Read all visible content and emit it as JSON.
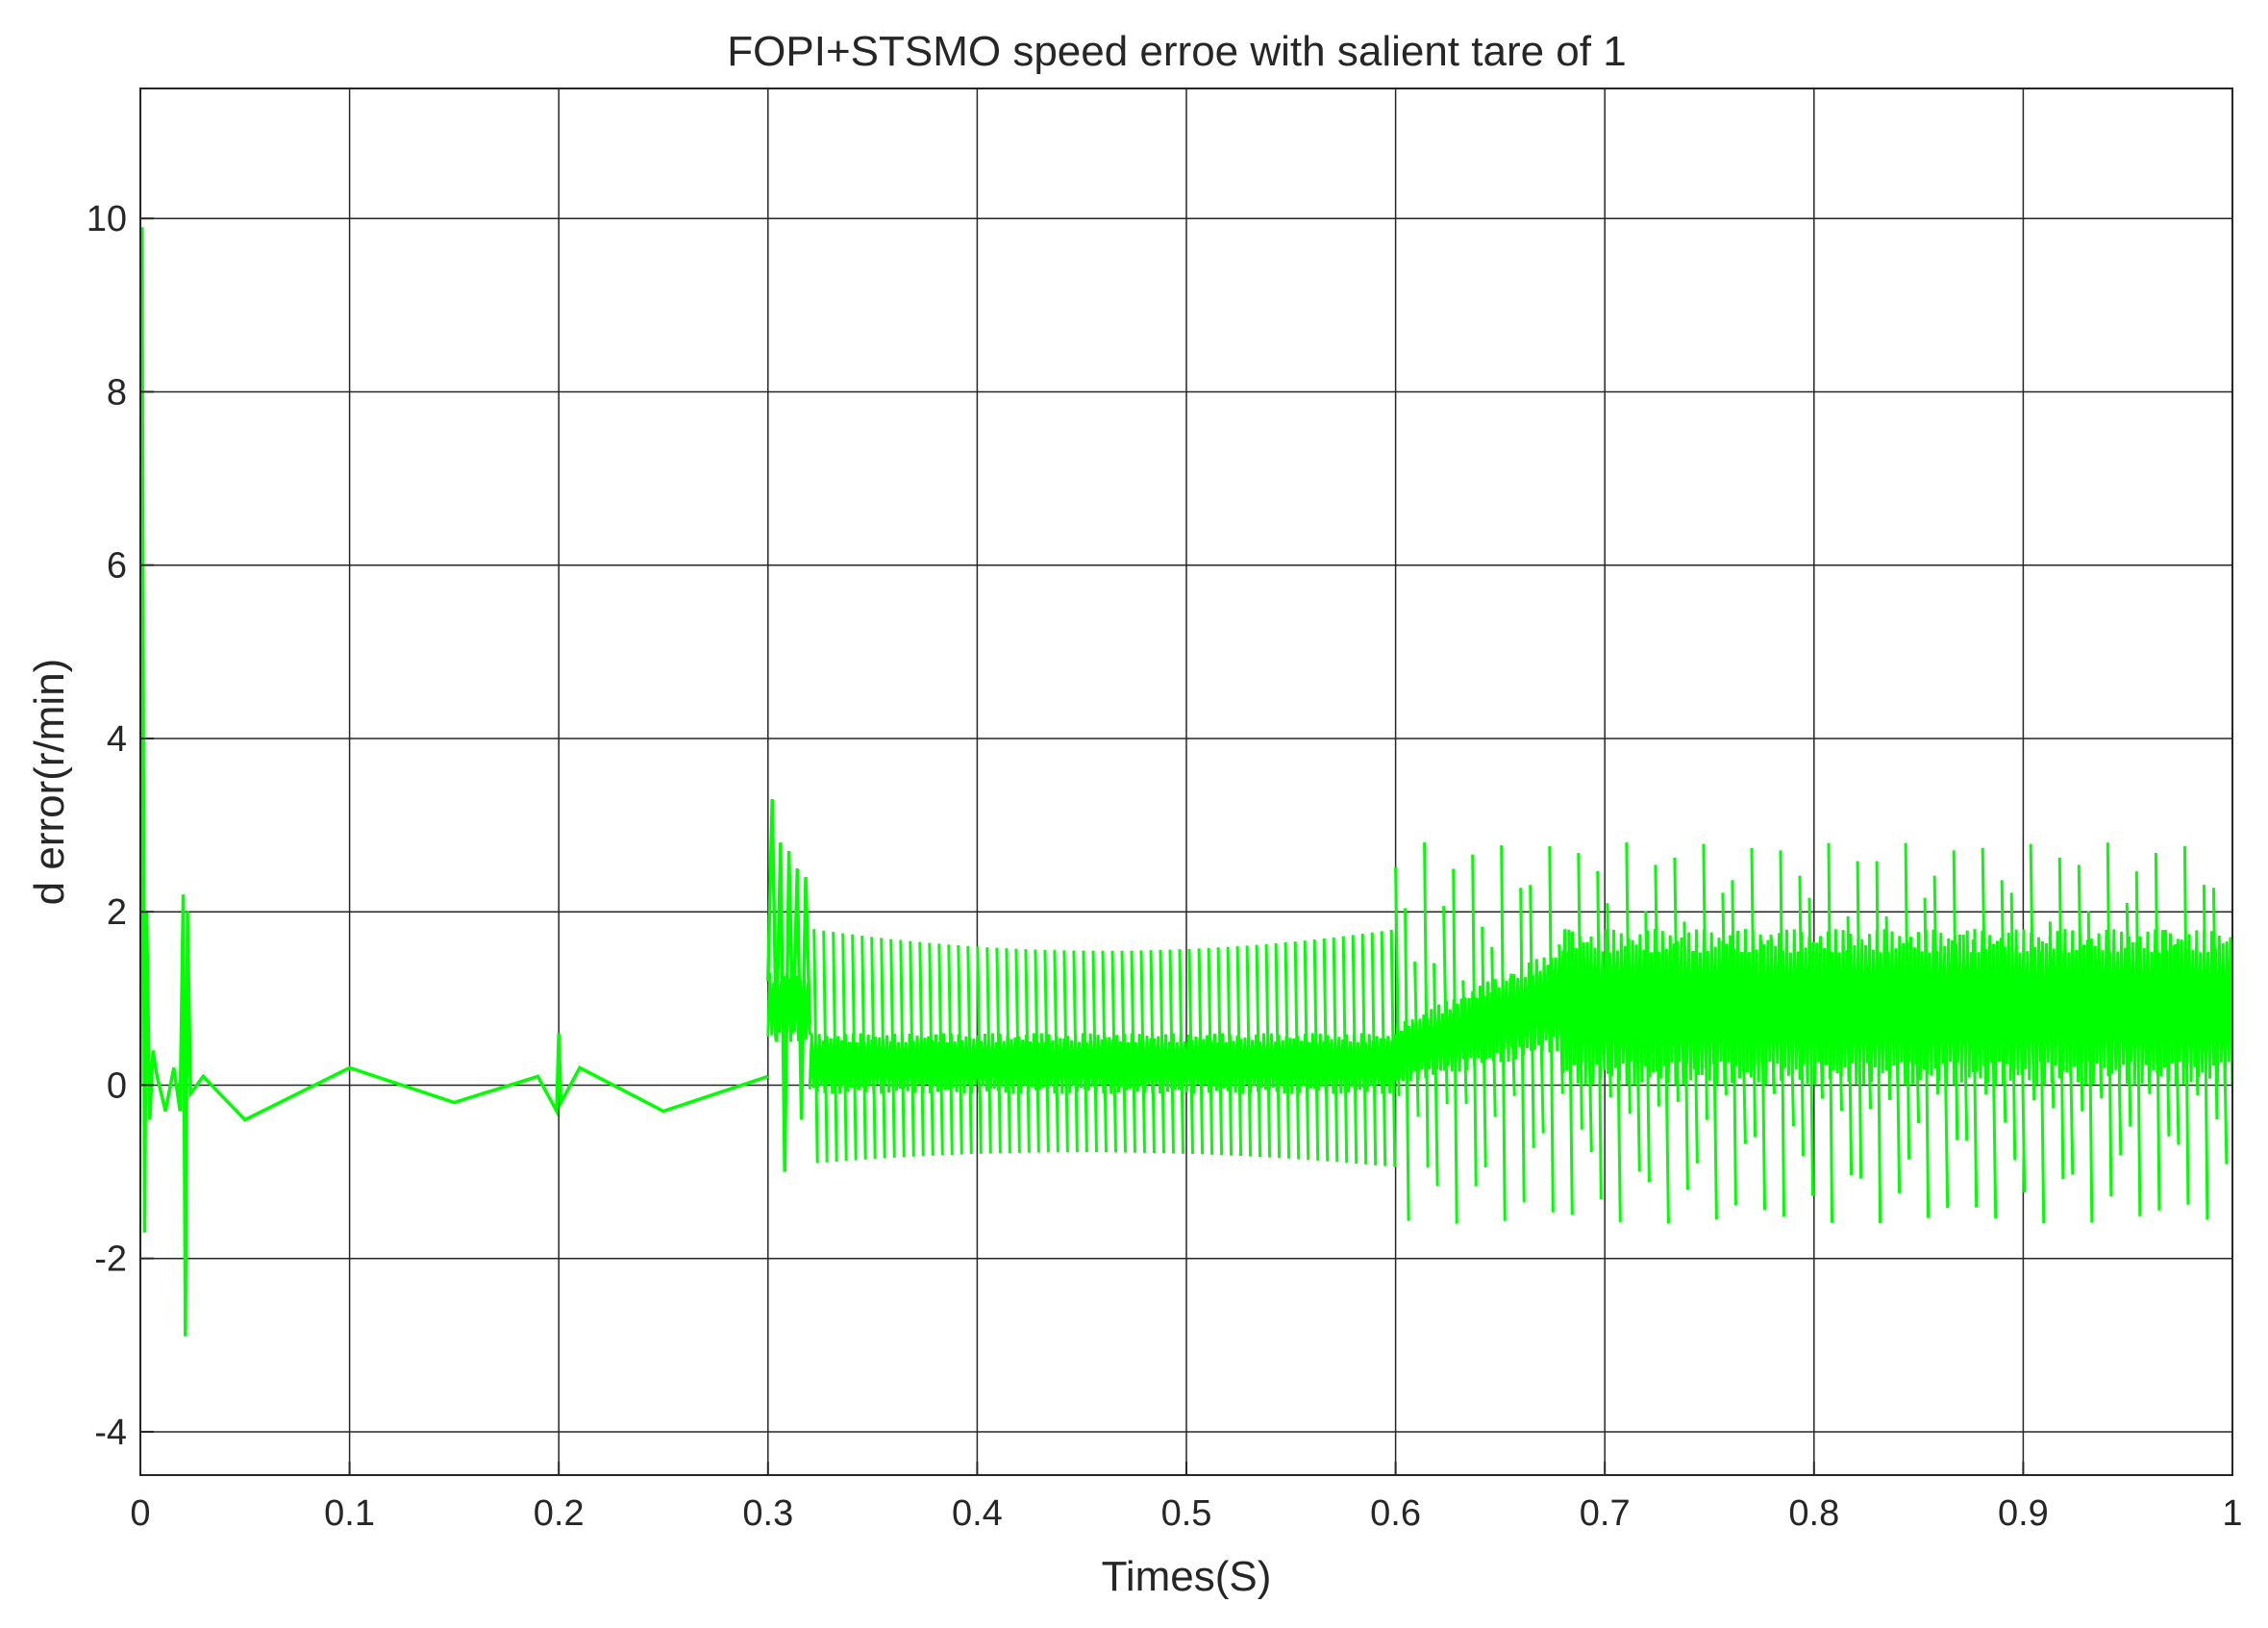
{
  "chart_data": {
    "type": "line",
    "title": "FOPI+STSMO speed erroe with salient tare of 1",
    "xlabel": "Times(S)",
    "ylabel": "d error(r/min)",
    "xlim": [
      0,
      1
    ],
    "ylim": [
      -4.5,
      11.5
    ],
    "xticks": [
      0,
      0.1,
      0.2,
      0.3,
      0.4,
      0.5,
      0.6,
      0.7,
      0.8,
      0.9,
      1
    ],
    "xtick_labels": [
      "0",
      "0.1",
      "0.2",
      "0.3",
      "0.4",
      "0.5",
      "0.6",
      "0.7",
      "0.8",
      "0.9",
      "1"
    ],
    "yticks": [
      -4,
      -2,
      0,
      2,
      4,
      6,
      8,
      10
    ],
    "ytick_labels": [
      "-4",
      "-2",
      "0",
      "2",
      "4",
      "6",
      "8",
      "10"
    ],
    "grid": true,
    "legend": "none",
    "series_color": "#00ff00",
    "series": [
      {
        "segments": [
          {
            "t": [
              0.0,
              0.0008,
              0.002,
              0.003,
              0.0045,
              0.006,
              0.008,
              0.012,
              0.016,
              0.019,
              0.0205,
              0.0215,
              0.0225,
              0.024,
              0.03,
              0.05,
              0.1,
              0.15,
              0.19,
              0.199,
              0.2,
              0.201,
              0.21,
              0.25,
              0.3
            ],
            "y": [
              0,
              9.9,
              -1.7,
              2.0,
              -0.4,
              0.4,
              0.1,
              -0.3,
              0.2,
              -0.3,
              2.2,
              -2.9,
              2.0,
              -0.1,
              0.1,
              -0.4,
              0.2,
              -0.2,
              0.1,
              -0.3,
              0.6,
              -0.2,
              0.2,
              -0.3,
              0.1
            ]
          },
          {
            "t": [
              0.3,
              0.302,
              0.304,
              0.306,
              0.308,
              0.31,
              0.312,
              0.314,
              0.316,
              0.318,
              0.32
            ],
            "y": [
              1.2,
              3.3,
              0.5,
              2.8,
              -1.0,
              2.7,
              0.6,
              2.5,
              -0.4,
              2.4,
              0.7
            ]
          }
        ],
        "bands": [
          {
            "t_start": 0.3,
            "t_end": 0.32,
            "low": 0.5,
            "high": 1.3
          },
          {
            "t_start": 0.32,
            "t_end": 0.6,
            "low": -0.1,
            "high": 0.6
          },
          {
            "t_start": 0.6,
            "t_end": 0.68,
            "low_start": 0.0,
            "low_end": 0.4,
            "high_start": 0.7,
            "high_end": 1.6
          },
          {
            "t_start": 0.68,
            "t_end": 1.0,
            "low": 0.0,
            "high": 1.8
          }
        ],
        "spike_trains": [
          {
            "t_start": 0.322,
            "t_end": 0.6,
            "period": 0.0046,
            "high_start": 1.8,
            "high_mid": 1.55,
            "high_end": 1.8,
            "low_start": -0.9,
            "low_mid": -0.75,
            "low_end": -0.95
          },
          {
            "t_start": 0.6,
            "t_end": 1.0,
            "period": 0.0046,
            "high_min": 1.2,
            "high_max": 2.8,
            "low_min": -1.6,
            "low_max": -0.1
          }
        ]
      }
    ]
  }
}
